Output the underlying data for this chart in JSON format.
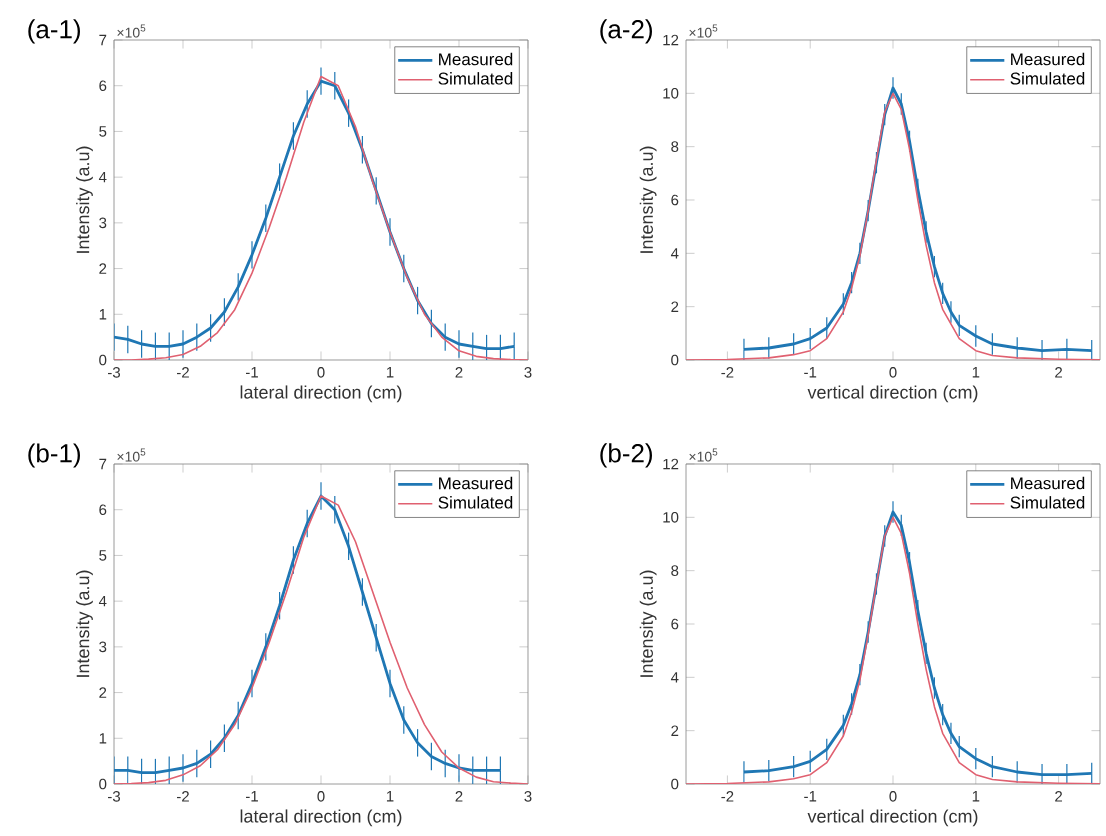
{
  "chart_data": [
    {
      "type": "line",
      "title": "(a-1)",
      "xlabel": "lateral direction (cm)",
      "ylabel": "Intensity (a.u)",
      "annotations": [
        "×10$^{5}$"
      ],
      "xlim": [
        -3,
        3
      ],
      "ylim": [
        0,
        7
      ],
      "xticks": [
        -3,
        -2,
        -1,
        0,
        1,
        2,
        3
      ],
      "yticks": [
        0,
        1,
        2,
        3,
        4,
        5,
        6,
        7
      ],
      "legend": "top right",
      "series": [
        {
          "name": "Measured",
          "color": "#1f77b4",
          "x": [
            -3.0,
            -2.8,
            -2.6,
            -2.4,
            -2.2,
            -2.0,
            -1.8,
            -1.6,
            -1.4,
            -1.2,
            -1.0,
            -0.8,
            -0.6,
            -0.4,
            -0.2,
            0.0,
            0.2,
            0.4,
            0.6,
            0.8,
            1.0,
            1.2,
            1.4,
            1.6,
            1.8,
            2.0,
            2.2,
            2.4,
            2.6,
            2.8
          ],
          "values": [
            0.5,
            0.45,
            0.35,
            0.3,
            0.3,
            0.35,
            0.5,
            0.7,
            1.05,
            1.6,
            2.3,
            3.1,
            4.0,
            4.9,
            5.6,
            6.1,
            6.0,
            5.4,
            4.6,
            3.7,
            2.8,
            2.0,
            1.3,
            0.8,
            0.5,
            0.35,
            0.3,
            0.25,
            0.25,
            0.3
          ],
          "errors": [
            0.3,
            0.3,
            0.3,
            0.3,
            0.3,
            0.3,
            0.3,
            0.3,
            0.3,
            0.3,
            0.3,
            0.3,
            0.3,
            0.3,
            0.3,
            0.3,
            0.3,
            0.3,
            0.3,
            0.3,
            0.3,
            0.3,
            0.3,
            0.3,
            0.3,
            0.3,
            0.3,
            0.3,
            0.3,
            0.3
          ]
        },
        {
          "name": "Simulated",
          "color": "#e06070",
          "x": [
            -3,
            -2.75,
            -2.5,
            -2.25,
            -2,
            -1.75,
            -1.5,
            -1.25,
            -1,
            -0.75,
            -0.5,
            -0.25,
            0,
            0.25,
            0.5,
            0.75,
            1,
            1.25,
            1.5,
            1.75,
            2,
            2.25,
            2.5,
            2.75,
            3
          ],
          "values": [
            0,
            0,
            0.02,
            0.05,
            0.12,
            0.3,
            0.6,
            1.1,
            1.9,
            2.9,
            4.0,
            5.2,
            6.2,
            6.0,
            5.1,
            3.9,
            2.8,
            1.8,
            1.0,
            0.5,
            0.2,
            0.08,
            0.03,
            0.01,
            0
          ]
        }
      ]
    },
    {
      "type": "line",
      "title": "(a-2)",
      "xlabel": "vertical direction (cm)",
      "ylabel": "Intensity (a.u)",
      "annotations": [
        "×10$^{5}$"
      ],
      "xlim": [
        -2.5,
        2.5
      ],
      "ylim": [
        0,
        12
      ],
      "xticks": [
        -2,
        -1,
        0,
        1,
        2
      ],
      "yticks": [
        0,
        2,
        4,
        6,
        8,
        10,
        12
      ],
      "legend": "top right",
      "series": [
        {
          "name": "Measured",
          "color": "#1f77b4",
          "x": [
            -1.8,
            -1.5,
            -1.2,
            -1.0,
            -0.8,
            -0.6,
            -0.5,
            -0.4,
            -0.3,
            -0.2,
            -0.1,
            0,
            0.1,
            0.2,
            0.3,
            0.4,
            0.5,
            0.6,
            0.7,
            0.8,
            1.0,
            1.2,
            1.5,
            1.8,
            2.1,
            2.4
          ],
          "values": [
            0.4,
            0.45,
            0.6,
            0.8,
            1.2,
            2.1,
            2.9,
            4.0,
            5.6,
            7.4,
            9.2,
            10.2,
            9.6,
            8.2,
            6.4,
            4.8,
            3.5,
            2.5,
            1.8,
            1.3,
            0.9,
            0.6,
            0.45,
            0.35,
            0.4,
            0.35
          ],
          "errors": [
            0.4,
            0.4,
            0.4,
            0.4,
            0.4,
            0.4,
            0.4,
            0.4,
            0.4,
            0.4,
            0.4,
            0.4,
            0.4,
            0.4,
            0.4,
            0.4,
            0.4,
            0.4,
            0.4,
            0.4,
            0.4,
            0.4,
            0.4,
            0.4,
            0.4,
            0.4
          ]
        },
        {
          "name": "Simulated",
          "color": "#e06070",
          "x": [
            -2.5,
            -2,
            -1.5,
            -1.2,
            -1,
            -0.8,
            -0.6,
            -0.5,
            -0.4,
            -0.3,
            -0.2,
            -0.1,
            0,
            0.1,
            0.2,
            0.3,
            0.4,
            0.5,
            0.6,
            0.8,
            1,
            1.2,
            1.5,
            2,
            2.5
          ],
          "values": [
            0,
            0.02,
            0.08,
            0.2,
            0.35,
            0.8,
            1.8,
            2.7,
            3.9,
            5.6,
            7.5,
            9.3,
            10.0,
            9.4,
            7.9,
            6.0,
            4.3,
            2.9,
            1.9,
            0.8,
            0.35,
            0.17,
            0.08,
            0.03,
            0.01
          ]
        }
      ]
    },
    {
      "type": "line",
      "title": "(b-1)",
      "xlabel": "lateral direction (cm)",
      "ylabel": "Intensity (a.u)",
      "annotations": [
        "×10$^{5}$"
      ],
      "xlim": [
        -3,
        3
      ],
      "ylim": [
        0,
        7
      ],
      "xticks": [
        -3,
        -2,
        -1,
        0,
        1,
        2,
        3
      ],
      "yticks": [
        0,
        1,
        2,
        3,
        4,
        5,
        6,
        7
      ],
      "legend": "top right",
      "series": [
        {
          "name": "Measured",
          "color": "#1f77b4",
          "x": [
            -3.0,
            -2.8,
            -2.6,
            -2.4,
            -2.2,
            -2.0,
            -1.8,
            -1.6,
            -1.4,
            -1.2,
            -1.0,
            -0.8,
            -0.6,
            -0.4,
            -0.2,
            0.0,
            0.2,
            0.4,
            0.6,
            0.8,
            1.0,
            1.2,
            1.4,
            1.6,
            1.8,
            2.0,
            2.2,
            2.4,
            2.6
          ],
          "values": [
            0.3,
            0.3,
            0.25,
            0.25,
            0.3,
            0.35,
            0.45,
            0.65,
            1.0,
            1.5,
            2.2,
            3.0,
            3.9,
            4.9,
            5.7,
            6.3,
            6.0,
            5.2,
            4.2,
            3.2,
            2.2,
            1.4,
            0.9,
            0.6,
            0.45,
            0.35,
            0.3,
            0.3,
            0.3
          ],
          "errors": [
            0.3,
            0.3,
            0.3,
            0.3,
            0.3,
            0.3,
            0.3,
            0.3,
            0.3,
            0.3,
            0.3,
            0.3,
            0.3,
            0.3,
            0.3,
            0.3,
            0.3,
            0.3,
            0.3,
            0.3,
            0.3,
            0.3,
            0.3,
            0.3,
            0.3,
            0.3,
            0.3,
            0.3,
            0.3
          ]
        },
        {
          "name": "Simulated",
          "color": "#e06070",
          "x": [
            -3,
            -2.75,
            -2.5,
            -2.25,
            -2,
            -1.75,
            -1.5,
            -1.25,
            -1,
            -0.75,
            -0.5,
            -0.25,
            0,
            0.25,
            0.5,
            0.75,
            1,
            1.25,
            1.5,
            1.75,
            2,
            2.25,
            2.5,
            2.75,
            3
          ],
          "values": [
            0,
            0.01,
            0.03,
            0.08,
            0.2,
            0.4,
            0.75,
            1.3,
            2.1,
            3.1,
            4.2,
            5.4,
            6.3,
            6.1,
            5.3,
            4.2,
            3.1,
            2.1,
            1.3,
            0.7,
            0.35,
            0.15,
            0.05,
            0.02,
            0
          ]
        }
      ]
    },
    {
      "type": "line",
      "title": "(b-2)",
      "xlabel": "vertical direction (cm)",
      "ylabel": "Intensity (a.u)",
      "annotations": [
        "×10$^{5}$"
      ],
      "xlim": [
        -2.5,
        2.5
      ],
      "ylim": [
        0,
        12
      ],
      "xticks": [
        -2,
        -1,
        0,
        1,
        2
      ],
      "yticks": [
        0,
        2,
        4,
        6,
        8,
        10,
        12
      ],
      "legend": "top right",
      "series": [
        {
          "name": "Measured",
          "color": "#1f77b4",
          "x": [
            -1.8,
            -1.5,
            -1.2,
            -1.0,
            -0.8,
            -0.6,
            -0.5,
            -0.4,
            -0.3,
            -0.2,
            -0.1,
            0,
            0.1,
            0.2,
            0.3,
            0.4,
            0.5,
            0.6,
            0.7,
            0.8,
            1.0,
            1.2,
            1.5,
            1.8,
            2.1,
            2.4
          ],
          "values": [
            0.45,
            0.5,
            0.65,
            0.85,
            1.3,
            2.2,
            3.0,
            4.1,
            5.7,
            7.5,
            9.3,
            10.2,
            9.7,
            8.3,
            6.5,
            4.9,
            3.6,
            2.6,
            1.9,
            1.4,
            0.95,
            0.65,
            0.45,
            0.35,
            0.35,
            0.4
          ],
          "errors": [
            0.4,
            0.4,
            0.4,
            0.4,
            0.4,
            0.4,
            0.4,
            0.4,
            0.4,
            0.4,
            0.4,
            0.4,
            0.4,
            0.4,
            0.4,
            0.4,
            0.4,
            0.4,
            0.4,
            0.4,
            0.4,
            0.4,
            0.4,
            0.4,
            0.4,
            0.4
          ]
        },
        {
          "name": "Simulated",
          "color": "#e06070",
          "x": [
            -2.5,
            -2,
            -1.5,
            -1.2,
            -1,
            -0.8,
            -0.6,
            -0.5,
            -0.4,
            -0.3,
            -0.2,
            -0.1,
            0,
            0.1,
            0.2,
            0.3,
            0.4,
            0.5,
            0.6,
            0.8,
            1,
            1.2,
            1.5,
            2,
            2.5
          ],
          "values": [
            0,
            0.02,
            0.08,
            0.2,
            0.35,
            0.8,
            1.8,
            2.7,
            3.9,
            5.6,
            7.5,
            9.3,
            10.0,
            9.4,
            7.9,
            6.0,
            4.3,
            2.9,
            1.9,
            0.8,
            0.35,
            0.17,
            0.08,
            0.03,
            0.01
          ]
        }
      ]
    }
  ]
}
